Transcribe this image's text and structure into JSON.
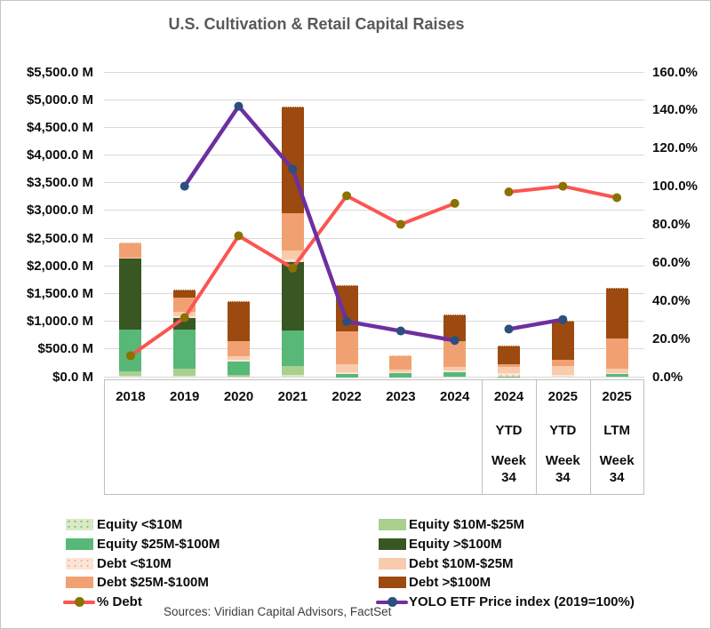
{
  "source_note": "Sources: Viridian Capital Advisors, FactSet",
  "colors": {
    "eq_lt10": "#d9e9c6",
    "eq_lt10_dot": "#8fbe75",
    "eq_10_25": "#a9d08e",
    "eq_25_100": "#57b878",
    "eq_gt100": "#385723",
    "debt_lt10": "#fbe5d7",
    "debt_lt10_dot": "#eeb793",
    "debt_10_25": "#f8cbad",
    "debt_25_100": "#f1a171",
    "debt_gt100": "#9c4a0f",
    "pct_debt": "#fb5553",
    "pct_debt_marker": "#8a7200",
    "yolo": "#6e2fa0",
    "yolo_marker": "#2b4f7e",
    "title": "#595959",
    "grid": "#d9d9d9",
    "box_border": "#bfbfbf"
  },
  "chart_data": {
    "type": "combo: stacked-bar + line, dual axis",
    "title": "U.S. Cultivation & Retail Capital Raises",
    "categories": [
      {
        "line1": "2018",
        "line2": "",
        "line3": ""
      },
      {
        "line1": "2019",
        "line2": "",
        "line3": ""
      },
      {
        "line1": "2020",
        "line2": "",
        "line3": ""
      },
      {
        "line1": "2021",
        "line2": "",
        "line3": ""
      },
      {
        "line1": "2022",
        "line2": "",
        "line3": ""
      },
      {
        "line1": "2023",
        "line2": "",
        "line3": ""
      },
      {
        "line1": "2024",
        "line2": "",
        "line3": ""
      },
      {
        "line1": "2024",
        "line2": "YTD",
        "line3": "Week 34"
      },
      {
        "line1": "2025",
        "line2": "YTD",
        "line3": "Week 34"
      },
      {
        "line1": "2025",
        "line2": "LTM",
        "line3": "Week 34"
      }
    ],
    "left_axis": {
      "unit": "$M",
      "min": 0,
      "max": 5500,
      "step": 500,
      "ticks": [
        "$5,500.0 M",
        "$5,000.0 M",
        "$4,500.0 M",
        "$4,000.0 M",
        "$3,500.0 M",
        "$3,000.0 M",
        "$2,500.0 M",
        "$2,000.0 M",
        "$1,500.0 M",
        "$1,000.0 M",
        "$500.0 M",
        "$0.0 M"
      ]
    },
    "right_axis": {
      "unit": "%",
      "min": 0,
      "max": 160,
      "step": 20,
      "ticks": [
        "160.0%",
        "140.0%",
        "120.0%",
        "100.0%",
        "80.0%",
        "60.0%",
        "40.0%",
        "20.0%",
        "0.0%"
      ]
    },
    "bar_series": [
      {
        "name": "Equity <$10M",
        "color_key": "eq_lt10",
        "dots": true,
        "values": [
          25,
          30,
          15,
          40,
          5,
          5,
          15,
          7,
          10,
          10
        ]
      },
      {
        "name": "Equity $10M-$25M",
        "color_key": "eq_10_25",
        "dots": false,
        "values": [
          85,
          130,
          40,
          175,
          0,
          0,
          0,
          0,
          0,
          0
        ]
      },
      {
        "name": "Equity $25M-$100M",
        "color_key": "eq_25_100",
        "dots": false,
        "values": [
          760,
          700,
          240,
          640,
          60,
          70,
          85,
          10,
          0,
          50
        ]
      },
      {
        "name": "Equity >$100M",
        "color_key": "eq_gt100",
        "dots": false,
        "values": [
          1280,
          215,
          0,
          1225,
          0,
          0,
          0,
          0,
          0,
          0
        ]
      },
      {
        "name": "Debt <$10M",
        "color_key": "debt_lt10",
        "dots": true,
        "values": [
          5,
          25,
          25,
          50,
          30,
          15,
          25,
          60,
          35,
          25
        ]
      },
      {
        "name": "Debt $10M-$25M",
        "color_key": "debt_10_25",
        "dots": false,
        "values": [
          10,
          90,
          60,
          170,
          140,
          50,
          75,
          108,
          160,
          75
        ]
      },
      {
        "name": "Debt $25M-$100M",
        "color_key": "debt_25_100",
        "dots": false,
        "values": [
          250,
          250,
          275,
          660,
          600,
          250,
          450,
          55,
          115,
          540
        ]
      },
      {
        "name": "Debt >$100M",
        "color_key": "debt_gt100",
        "dots": false,
        "values": [
          0,
          130,
          705,
          1910,
          810,
          0,
          470,
          320,
          690,
          900
        ]
      }
    ],
    "bar_totals_approx_M": [
      2415,
      1570,
      1360,
      4870,
      1645,
      390,
      1120,
      560,
      1010,
      1600
    ],
    "line_series": [
      {
        "name": "% Debt",
        "axis": "right",
        "color_key": "pct_debt",
        "marker_key": "pct_debt_marker",
        "break_after_index": 6,
        "values": [
          11,
          31,
          74,
          57,
          95,
          80,
          91,
          97,
          100,
          94
        ]
      },
      {
        "name": "YOLO ETF Price index (2019=100%)",
        "axis": "right",
        "color_key": "yolo",
        "marker_key": "yolo_marker",
        "break_after_index": 6,
        "values": [
          null,
          100,
          142,
          109,
          29,
          24,
          19,
          25,
          30,
          null
        ]
      }
    ],
    "grid": "horizontal only",
    "legend_position": "bottom, two columns"
  },
  "legend": {
    "columns": [
      {
        "items": [
          {
            "label": "Equity <$10M",
            "kind": "box",
            "color_key": "eq_lt10",
            "dots": true
          },
          {
            "label": "Equity $25M-$100M",
            "kind": "box",
            "color_key": "eq_25_100",
            "dots": false
          },
          {
            "label": "Debt <$10M",
            "kind": "box",
            "color_key": "debt_lt10",
            "dots": true
          },
          {
            "label": "Debt $25M-$100M",
            "kind": "box",
            "color_key": "debt_25_100",
            "dots": false
          },
          {
            "label": "% Debt",
            "kind": "line",
            "color_key": "pct_debt",
            "marker_key": "pct_debt_marker"
          }
        ]
      },
      {
        "items": [
          {
            "label": "Equity $10M-$25M",
            "kind": "box",
            "color_key": "eq_10_25",
            "dots": false
          },
          {
            "label": "Equity >$100M",
            "kind": "box",
            "color_key": "eq_gt100",
            "dots": false
          },
          {
            "label": "Debt $10M-$25M",
            "kind": "box",
            "color_key": "debt_10_25",
            "dots": false
          },
          {
            "label": "Debt >$100M",
            "kind": "box",
            "color_key": "debt_gt100",
            "dots": false
          },
          {
            "label": "YOLO ETF Price index (2019=100%)",
            "kind": "line",
            "color_key": "yolo",
            "marker_key": "yolo_marker"
          }
        ]
      }
    ]
  }
}
